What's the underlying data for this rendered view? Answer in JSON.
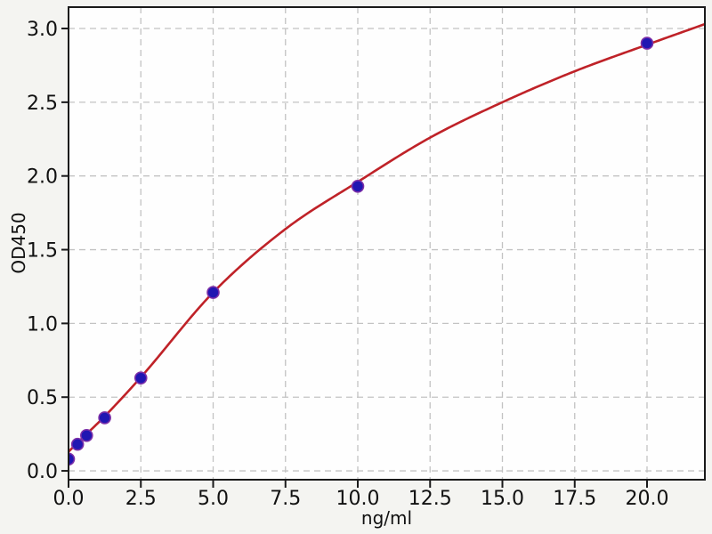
{
  "chart_data": {
    "type": "scatter",
    "title": "",
    "xlabel": "ng/ml",
    "ylabel": "OD450",
    "xlim": [
      0,
      22
    ],
    "ylim": [
      -0.06,
      3.145
    ],
    "grid": {
      "show": true,
      "style": "dashed"
    },
    "x_ticks": {
      "values": [
        0,
        2.5,
        5,
        7.5,
        10,
        12.5,
        15,
        17.5,
        20
      ],
      "labels": [
        "0.0",
        "2.5",
        "5.0",
        "7.5",
        "10.0",
        "12.5",
        "15.0",
        "17.5",
        "20.0"
      ]
    },
    "y_ticks": {
      "values": [
        0,
        0.5,
        1,
        1.5,
        2,
        2.5,
        3
      ],
      "labels": [
        "0.0",
        "0.5",
        "1.0",
        "1.5",
        "2.0",
        "2.5",
        "3.0"
      ]
    },
    "series": [
      {
        "name": "standards",
        "kind": "scatter",
        "x": [
          0,
          0.3125,
          0.625,
          1.25,
          2.5,
          5,
          10,
          20
        ],
        "y": [
          0.08,
          0.18,
          0.24,
          0.36,
          0.63,
          1.21,
          1.93,
          2.9
        ],
        "marker_color": "#2016b2",
        "marker_edge_color": "#7c2fa8",
        "marker_radius": 6.5
      },
      {
        "name": "fit-curve",
        "kind": "line",
        "x": [
          0,
          0.625,
          1.25,
          2.5,
          5,
          7.5,
          10,
          12.5,
          15,
          17.5,
          20,
          22
        ],
        "y": [
          0.13,
          0.25,
          0.37,
          0.635,
          1.21,
          1.64,
          1.96,
          2.26,
          2.5,
          2.71,
          2.89,
          3.03
        ],
        "line_color": "#bf2228",
        "line_width": 2.6
      }
    ],
    "colors": {
      "figure_bg": "#f4f4f1",
      "plot_bg": "#fefefe",
      "spine": "#1a1a1a",
      "grid": "#c3c3c3",
      "tick_label": "#111111"
    }
  }
}
